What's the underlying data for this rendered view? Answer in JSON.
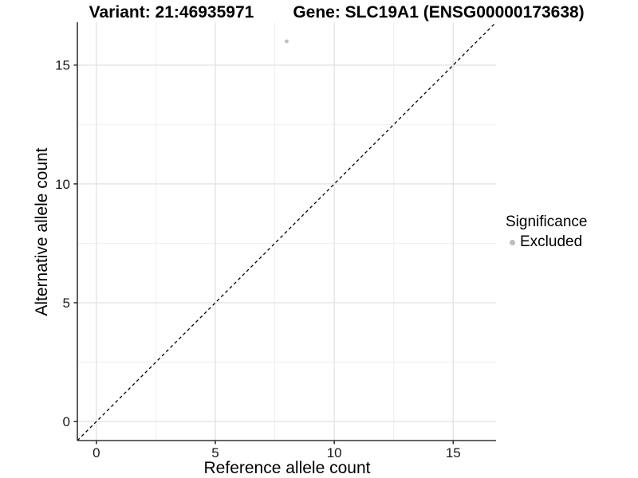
{
  "titles": {
    "variant": "Variant: 21:46935971",
    "gene": "Gene: SLC19A1 (ENSG00000173638)"
  },
  "chart_data": {
    "type": "scatter",
    "title": "Variant: 21:46935971   Gene: SLC19A1 (ENSG00000173638)",
    "xlabel": "Reference allele count",
    "ylabel": "Alternative allele count",
    "xlim": [
      -0.8,
      16.8
    ],
    "ylim": [
      -0.8,
      16.8
    ],
    "x_major_ticks": [
      0,
      5,
      10,
      15
    ],
    "y_major_ticks": [
      0,
      5,
      10,
      15
    ],
    "x_minor_ticks": [
      2.5,
      7.5,
      12.5
    ],
    "y_minor_ticks": [
      2.5,
      7.5,
      12.5
    ],
    "grid": "major-and-minor",
    "series": [
      {
        "name": "Excluded",
        "color": "#bebebe",
        "points": [
          {
            "x": 8,
            "y": 16
          }
        ]
      }
    ],
    "reference_line": {
      "kind": "identity",
      "style": "dashed",
      "color": "#000000",
      "from": [
        -0.8,
        -0.8
      ],
      "to": [
        16.8,
        16.8
      ]
    },
    "legend": {
      "title": "Significance",
      "position": "right",
      "items": [
        {
          "label": "Excluded",
          "color": "#bebebe",
          "marker": "circle"
        }
      ]
    }
  },
  "colors": {
    "background": "#ffffff",
    "grid_major": "#e2e2e2",
    "grid_minor": "#ededed",
    "axis_line": "#333333",
    "tick_label": "#1a1a1a",
    "point": "#bebebe"
  }
}
